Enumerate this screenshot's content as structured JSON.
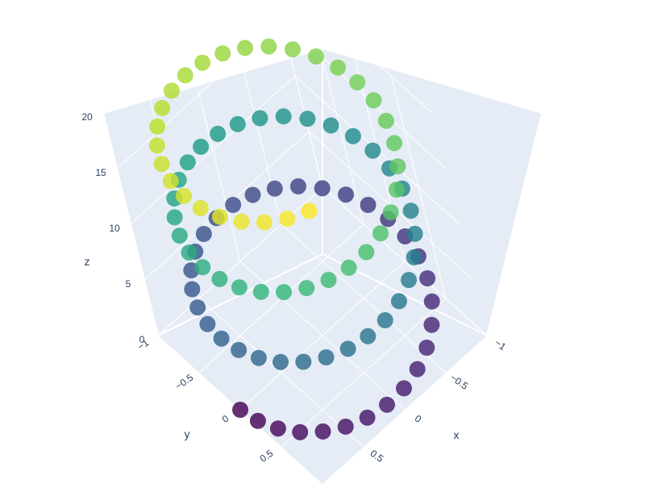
{
  "chart_data": {
    "type": "scatter3d",
    "marker_colorscale": "viridis",
    "background_color": "#e5ecf6",
    "grid_color": "#ffffff",
    "axes": {
      "x": {
        "label": "x",
        "range": [
          -1,
          1
        ],
        "ticks": [
          "−1",
          "−0.5",
          "0",
          "0.5"
        ]
      },
      "y": {
        "label": "y",
        "range": [
          -1,
          1
        ],
        "ticks": [
          "−1",
          "−0.5",
          "0",
          "0.5"
        ]
      },
      "z": {
        "label": "z",
        "range": [
          0,
          20
        ],
        "ticks": [
          "0",
          "5",
          "10",
          "15",
          "20"
        ]
      }
    },
    "series": {
      "t_start": 0,
      "t_end": 20,
      "point_count": 100,
      "x": "cos(t)",
      "y": "sin(t)",
      "z": "t"
    }
  }
}
